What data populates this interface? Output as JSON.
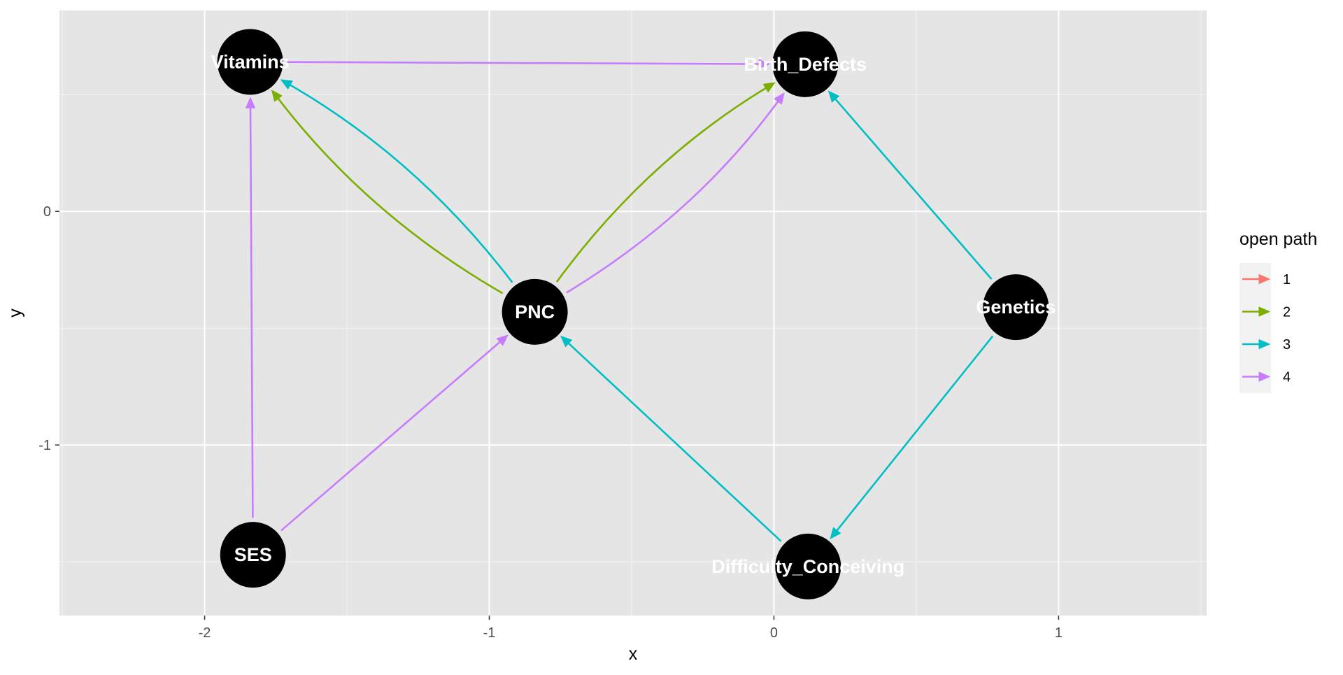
{
  "chart_data": {
    "type": "dag",
    "xlabel": "x",
    "ylabel": "y",
    "xlim": [
      -2.51,
      1.52
    ],
    "ylim": [
      -1.73,
      0.86
    ],
    "x_ticks": [
      -2,
      -1,
      0,
      1
    ],
    "x_tick_labels": [
      "-2",
      "-1",
      "0",
      "1"
    ],
    "y_ticks": [
      0,
      -1
    ],
    "y_tick_labels": [
      "0",
      "-1"
    ],
    "grid": true,
    "legend": {
      "title": "open path",
      "placement": "right",
      "entries": [
        {
          "label": "1",
          "color": "#F8766D"
        },
        {
          "label": "2",
          "color": "#7CAE00"
        },
        {
          "label": "3",
          "color": "#00BFC4"
        },
        {
          "label": "4",
          "color": "#C77CFF"
        }
      ]
    },
    "nodes": [
      {
        "name": "Vitamins",
        "x": -1.84,
        "y": 0.64
      },
      {
        "name": "Birth_Defects",
        "x": 0.11,
        "y": 0.63
      },
      {
        "name": "PNC",
        "x": -0.84,
        "y": -0.43
      },
      {
        "name": "Genetics",
        "x": 0.85,
        "y": -0.41
      },
      {
        "name": "SES",
        "x": -1.83,
        "y": -1.47
      },
      {
        "name": "Difficulty_Conceiving",
        "x": 0.12,
        "y": -1.52
      }
    ],
    "edges": [
      {
        "from": "Vitamins",
        "to": "Birth_Defects",
        "path": "4",
        "curve": 0
      },
      {
        "from": "PNC",
        "to": "Vitamins",
        "path": "2",
        "curve": -0.1
      },
      {
        "from": "PNC",
        "to": "Vitamins",
        "path": "3",
        "curve": 0.1
      },
      {
        "from": "PNC",
        "to": "Birth_Defects",
        "path": "2",
        "curve": -0.1
      },
      {
        "from": "PNC",
        "to": "Birth_Defects",
        "path": "4",
        "curve": 0.1
      },
      {
        "from": "SES",
        "to": "Vitamins",
        "path": "4",
        "curve": 0
      },
      {
        "from": "SES",
        "to": "PNC",
        "path": "4",
        "curve": 0
      },
      {
        "from": "Difficulty_Conceiving",
        "to": "PNC",
        "path": "3",
        "curve": 0
      },
      {
        "from": "Genetics",
        "to": "Birth_Defects",
        "path": "3",
        "curve": 0
      },
      {
        "from": "Genetics",
        "to": "Difficulty_Conceiving",
        "path": "3",
        "curve": 0
      }
    ]
  }
}
